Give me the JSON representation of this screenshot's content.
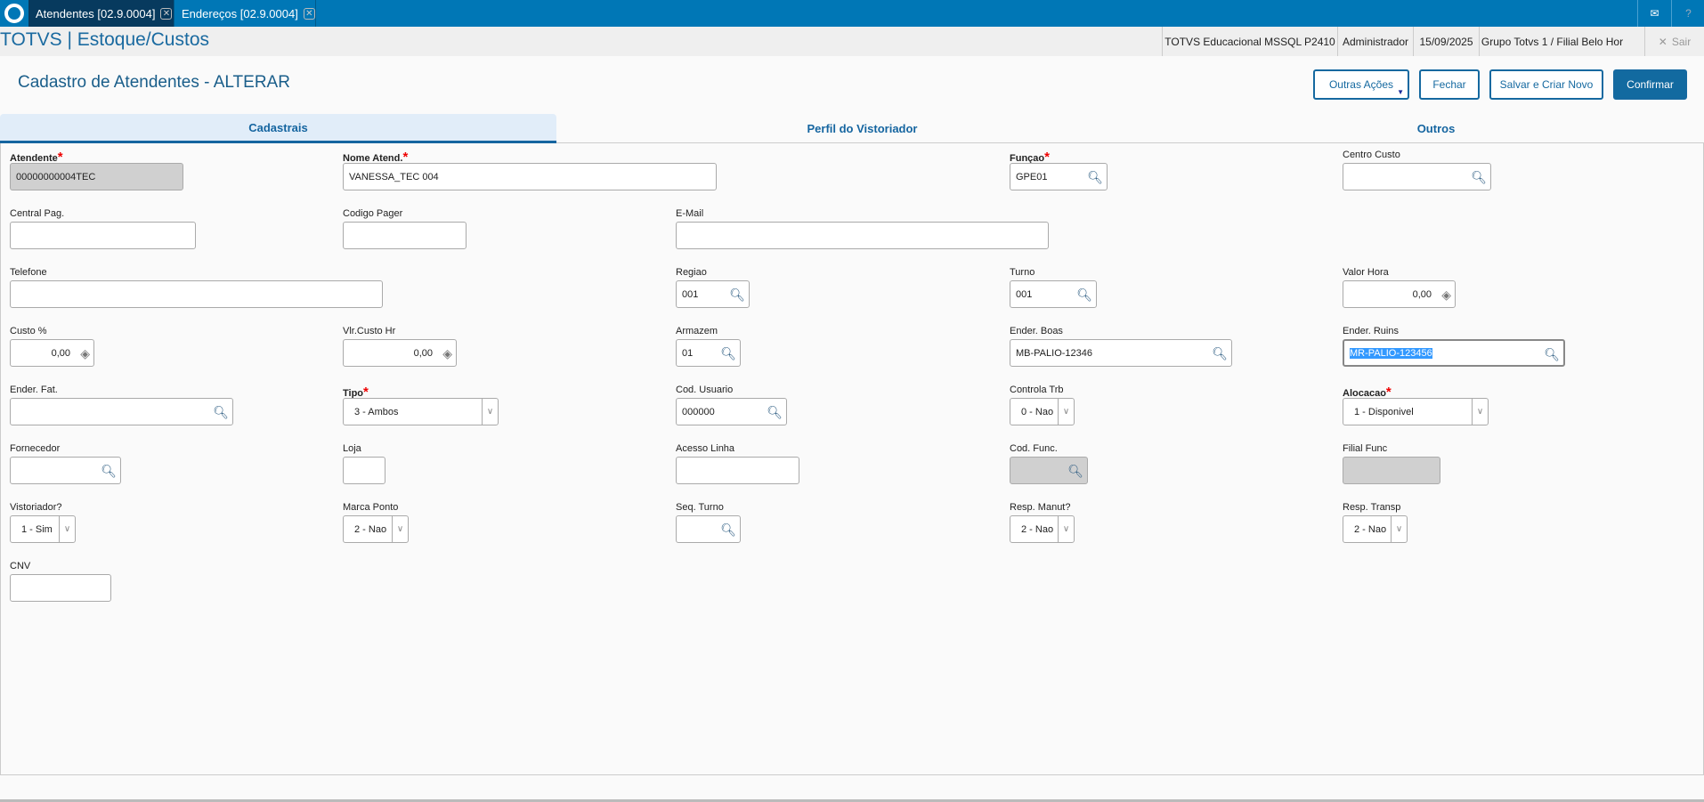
{
  "window_tabs": [
    {
      "label": "Atendentes [02.9.0004]",
      "active": true
    },
    {
      "label": "Endereços [02.9.0004]",
      "active": false
    }
  ],
  "icons": {
    "logo": "totvs-logo",
    "mail": "mail-icon",
    "help": "help-icon",
    "close": "close-icon",
    "search": "magnifier-icon",
    "money": "money-icon",
    "dropdown": "chevron-down-icon"
  },
  "app_title": "TOTVS | Estoque/Custos",
  "status": {
    "environment": "TOTVS Educacional MSSQL P2410",
    "user": "Administrador",
    "date": "15/09/2025",
    "branch": "Grupo Totvs 1 / Filial Belo Hor",
    "exit": "Sair"
  },
  "page_title": "Cadastro de Atendentes - ALTERAR",
  "actions": {
    "other": "Outras Ações",
    "close": "Fechar",
    "save_new": "Salvar e Criar Novo",
    "confirm": "Confirmar"
  },
  "tabs": [
    {
      "label": "Cadastrais"
    },
    {
      "label": "Perfil do Vistoriador"
    },
    {
      "label": "Outros"
    }
  ],
  "colors": {
    "topbar": "#0077b6",
    "active_tab": "#073a5e",
    "primary": "#126aa0",
    "required": "#ee0000"
  },
  "fields": {
    "atendente": {
      "label": "Atendente",
      "value": "00000000004TEC"
    },
    "nome": {
      "label": "Nome Atend.",
      "value": "VANESSA_TEC 004"
    },
    "funcao": {
      "label": "Funçao",
      "value": "GPE01"
    },
    "centro_custo": {
      "label": "Centro Custo",
      "value": ""
    },
    "central_pag": {
      "label": "Central Pag.",
      "value": ""
    },
    "codigo_pager": {
      "label": "Codigo Pager",
      "value": ""
    },
    "email": {
      "label": "E-Mail",
      "value": ""
    },
    "telefone": {
      "label": "Telefone",
      "value": ""
    },
    "regiao": {
      "label": "Regiao",
      "value": "001"
    },
    "turno": {
      "label": "Turno",
      "value": "001"
    },
    "valor_hora": {
      "label": "Valor Hora",
      "value": "0,00"
    },
    "custo": {
      "label": "Custo  %",
      "value": "0,00"
    },
    "vlr_custo": {
      "label": "Vlr.Custo Hr",
      "value": "0,00"
    },
    "armazem": {
      "label": "Armazem",
      "value": "01"
    },
    "ender_boas": {
      "label": "Ender. Boas",
      "value": "MB-PALIO-12346"
    },
    "ender_ruins": {
      "label": "Ender. Ruins",
      "value": "MR-PALIO-123456"
    },
    "ender_fat": {
      "label": "Ender.  Fat.",
      "value": ""
    },
    "tipo": {
      "label": "Tipo",
      "value": "3 - Ambos"
    },
    "cod_usuario": {
      "label": "Cod. Usuario",
      "value": "000000"
    },
    "controla_trb": {
      "label": "Controla Trb",
      "value": "0 - Nao"
    },
    "alocacao": {
      "label": "Alocacao",
      "value": "1 - Disponivel"
    },
    "fornecedor": {
      "label": "Fornecedor",
      "value": ""
    },
    "loja": {
      "label": "Loja",
      "value": ""
    },
    "acesso_linha": {
      "label": "Acesso Linha",
      "value": ""
    },
    "cod_func": {
      "label": "Cod. Func.",
      "value": ""
    },
    "filial_func": {
      "label": "Filial Func",
      "value": ""
    },
    "vistoriador": {
      "label": "Vistoriador?",
      "value": "1 - Sim"
    },
    "marca_ponto": {
      "label": "Marca Ponto",
      "value": "2 - Nao"
    },
    "seq_turno": {
      "label": "Seq. Turno",
      "value": ""
    },
    "resp_manut": {
      "label": "Resp. Manut?",
      "value": "2 - Nao"
    },
    "resp_transp": {
      "label": "Resp. Transp",
      "value": "2 - Nao"
    },
    "cnv": {
      "label": "CNV",
      "value": ""
    }
  }
}
